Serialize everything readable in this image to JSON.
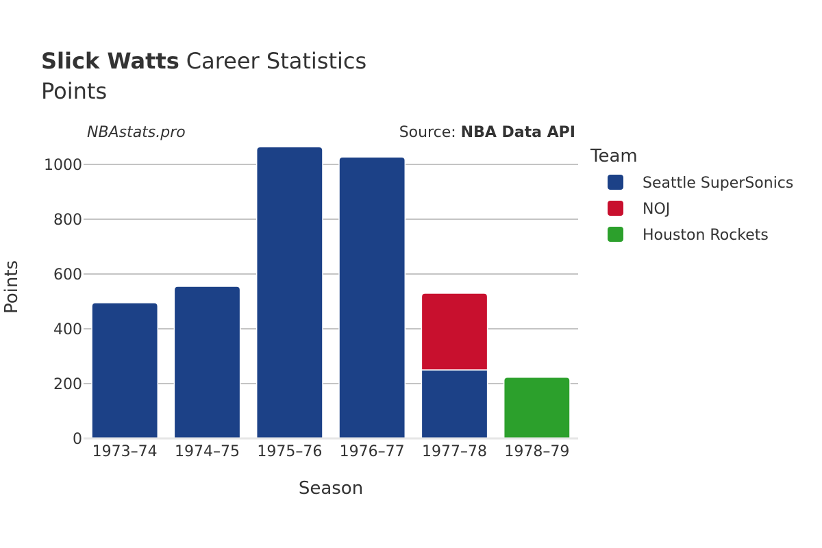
{
  "header": {
    "player_name": "Slick Watts",
    "title_rest": "Career Statistics",
    "subtitle": "Points"
  },
  "watermark": "NBAstats.pro",
  "source": {
    "prefix": "Source: ",
    "name": "NBA Data API"
  },
  "legend": {
    "title": "Team"
  },
  "chart_data": {
    "type": "bar",
    "stacked": true,
    "categories": [
      "1973–74",
      "1974–75",
      "1975–76",
      "1976–77",
      "1977–78",
      "1978–79"
    ],
    "series": [
      {
        "name": "Seattle SuperSonics",
        "color": "#1c4187",
        "values": [
          495,
          555,
          1064,
          1027,
          250,
          0
        ]
      },
      {
        "name": "NOJ",
        "color": "#c8102e",
        "values": [
          0,
          0,
          0,
          0,
          280,
          0
        ]
      },
      {
        "name": "Houston Rockets",
        "color": "#2ca02c",
        "values": [
          0,
          0,
          0,
          0,
          0,
          223
        ]
      }
    ],
    "xlabel": "Season",
    "ylabel": "Points",
    "ylim": [
      0,
      1100
    ],
    "yticks": [
      0,
      200,
      400,
      600,
      800,
      1000
    ],
    "grid": true,
    "legend_position": "right"
  }
}
